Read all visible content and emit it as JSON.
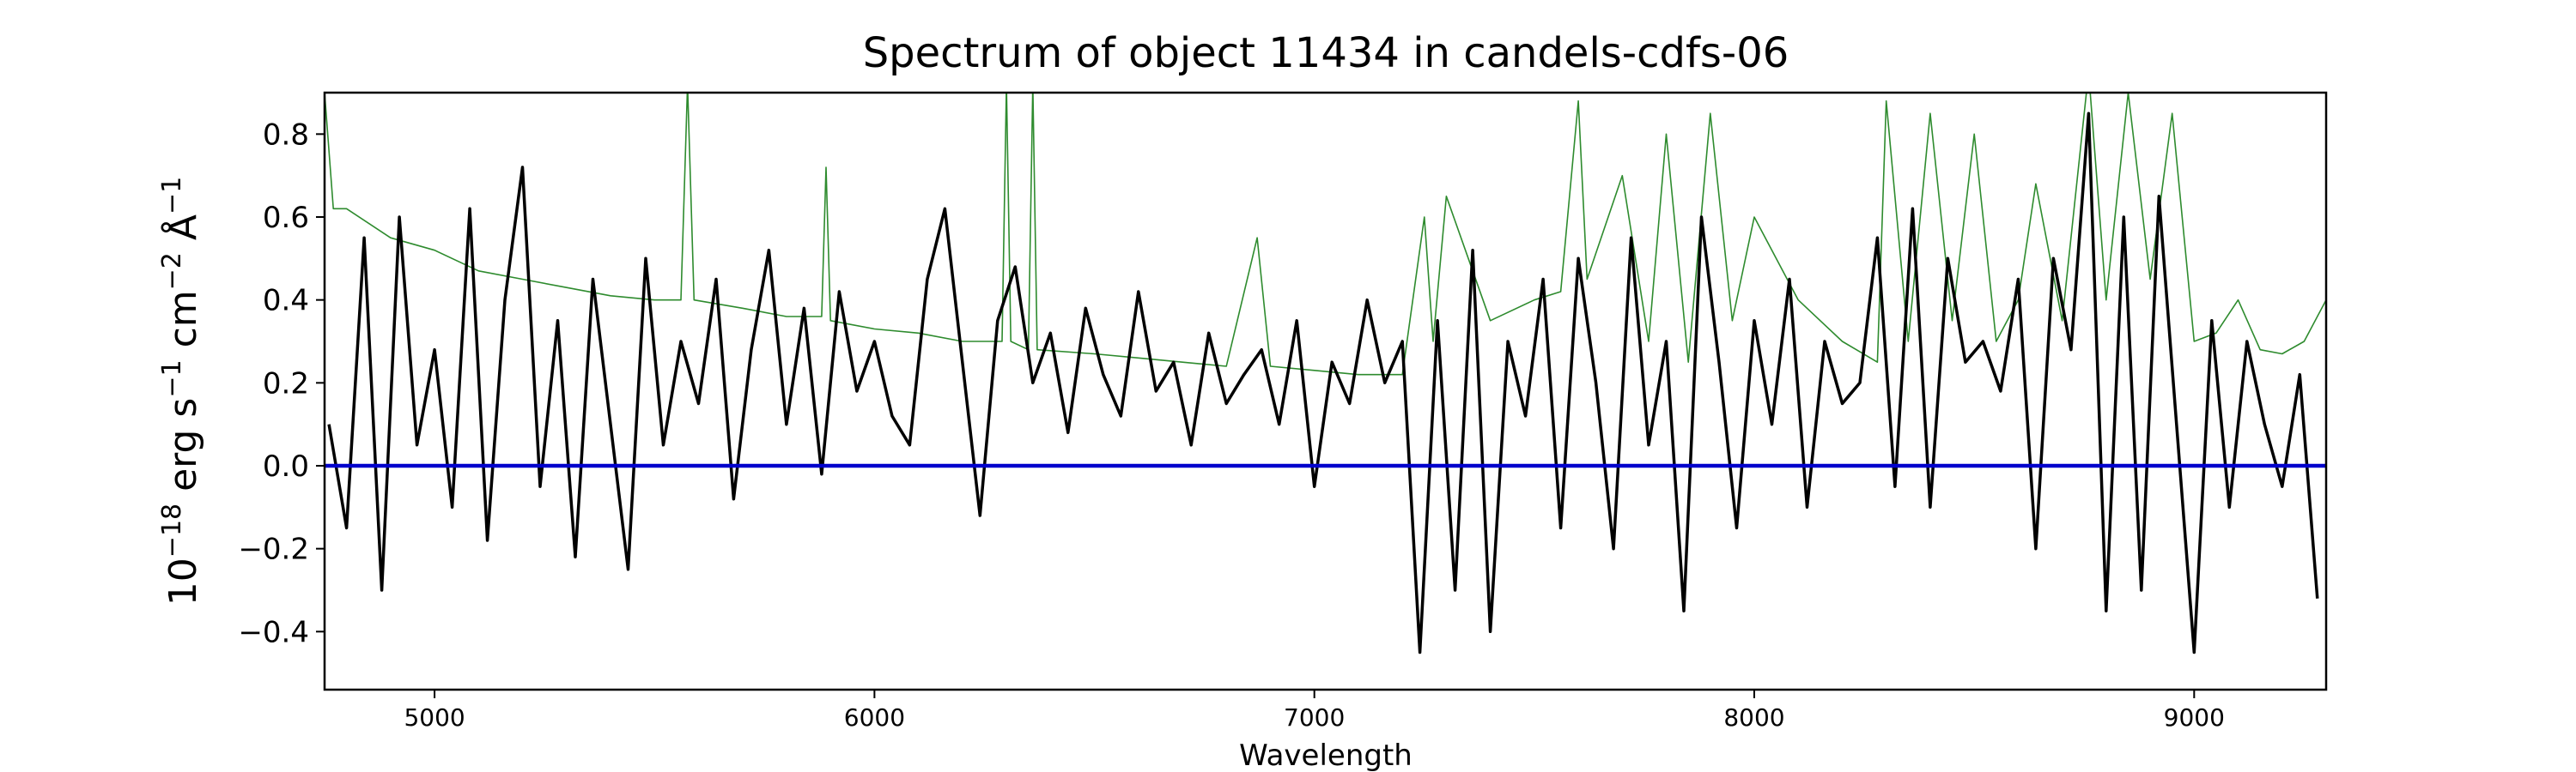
{
  "chart_data": {
    "type": "line",
    "title": "Spectrum of object 11434 in candels-cdfs-06",
    "xlabel": "Wavelength",
    "ylabel": "10^−18 erg s^−1 cm^−2 Å^−1",
    "ylabel_parts": {
      "base1": "10",
      "exp1": "−18",
      "unit1": " erg s",
      "exp2": "−1",
      "unit2": " cm",
      "exp3": "−2",
      "unit3": " Å",
      "exp4": "−1"
    },
    "xlim": [
      4750,
      9300
    ],
    "ylim": [
      -0.54,
      0.9
    ],
    "grid": false,
    "legend": "none",
    "x_ticks": [
      {
        "value": 5000,
        "label": "5000"
      },
      {
        "value": 6000,
        "label": "6000"
      },
      {
        "value": 7000,
        "label": "7000"
      },
      {
        "value": 8000,
        "label": "8000"
      },
      {
        "value": 9000,
        "label": "9000"
      }
    ],
    "y_ticks": [
      {
        "value": -0.4,
        "label": "−0.4"
      },
      {
        "value": -0.2,
        "label": "−0.2"
      },
      {
        "value": 0.0,
        "label": "0.0"
      },
      {
        "value": 0.2,
        "label": "0.2"
      },
      {
        "value": 0.4,
        "label": "0.4"
      },
      {
        "value": 0.6,
        "label": "0.6"
      },
      {
        "value": 0.8,
        "label": "0.8"
      }
    ],
    "series": [
      {
        "role": "flux",
        "color": "#000000",
        "x": [
          4760,
          4800,
          4840,
          4880,
          4920,
          4960,
          5000,
          5040,
          5080,
          5120,
          5160,
          5200,
          5240,
          5280,
          5320,
          5360,
          5400,
          5440,
          5480,
          5520,
          5560,
          5600,
          5640,
          5680,
          5720,
          5760,
          5800,
          5840,
          5880,
          5920,
          5960,
          6000,
          6040,
          6080,
          6120,
          6160,
          6200,
          6240,
          6280,
          6320,
          6360,
          6400,
          6440,
          6480,
          6520,
          6560,
          6600,
          6640,
          6680,
          6720,
          6760,
          6800,
          6840,
          6880,
          6920,
          6960,
          7000,
          7040,
          7080,
          7120,
          7160,
          7200,
          7240,
          7280,
          7320,
          7360,
          7400,
          7440,
          7480,
          7520,
          7560,
          7600,
          7640,
          7680,
          7720,
          7760,
          7800,
          7840,
          7880,
          7920,
          7960,
          8000,
          8040,
          8080,
          8120,
          8160,
          8200,
          8240,
          8280,
          8320,
          8360,
          8400,
          8440,
          8480,
          8520,
          8560,
          8600,
          8640,
          8680,
          8720,
          8760,
          8800,
          8840,
          8880,
          8920,
          8960,
          9000,
          9040,
          9080,
          9120,
          9160,
          9200,
          9240,
          9280
        ],
        "y": [
          0.1,
          -0.15,
          0.55,
          -0.3,
          0.6,
          0.05,
          0.28,
          -0.1,
          0.62,
          -0.18,
          0.4,
          0.72,
          -0.05,
          0.35,
          -0.22,
          0.45,
          0.1,
          -0.25,
          0.5,
          0.05,
          0.3,
          0.15,
          0.45,
          -0.08,
          0.28,
          0.52,
          0.1,
          0.38,
          -0.02,
          0.42,
          0.18,
          0.3,
          0.12,
          0.05,
          0.45,
          0.62,
          0.25,
          -0.12,
          0.35,
          0.48,
          0.2,
          0.32,
          0.08,
          0.38,
          0.22,
          0.12,
          0.42,
          0.18,
          0.25,
          0.05,
          0.32,
          0.15,
          0.22,
          0.28,
          0.1,
          0.35,
          -0.05,
          0.25,
          0.15,
          0.4,
          0.2,
          0.3,
          -0.45,
          0.35,
          -0.3,
          0.52,
          -0.4,
          0.3,
          0.12,
          0.45,
          -0.15,
          0.5,
          0.2,
          -0.2,
          0.55,
          0.05,
          0.3,
          -0.35,
          0.6,
          0.25,
          -0.15,
          0.35,
          0.1,
          0.45,
          -0.1,
          0.3,
          0.15,
          0.2,
          0.55,
          -0.05,
          0.62,
          -0.1,
          0.5,
          0.25,
          0.3,
          0.18,
          0.45,
          -0.2,
          0.5,
          0.28,
          0.85,
          -0.35,
          0.6,
          -0.3,
          0.65,
          0.1,
          -0.45,
          0.35,
          -0.1,
          0.3,
          0.1,
          -0.05,
          0.22,
          -0.32
        ]
      },
      {
        "role": "error",
        "color": "#2e8b2e",
        "x": [
          4750,
          4770,
          4800,
          4900,
          5000,
          5100,
          5200,
          5300,
          5400,
          5500,
          5560,
          5575,
          5590,
          5700,
          5800,
          5880,
          5890,
          5900,
          6000,
          6100,
          6200,
          6290,
          6300,
          6310,
          6350,
          6360,
          6370,
          6500,
          6600,
          6700,
          6800,
          6870,
          6900,
          7000,
          7100,
          7200,
          7250,
          7270,
          7300,
          7400,
          7500,
          7560,
          7600,
          7620,
          7700,
          7760,
          7800,
          7850,
          7900,
          7950,
          8000,
          8100,
          8200,
          8280,
          8300,
          8350,
          8400,
          8450,
          8500,
          8550,
          8600,
          8640,
          8700,
          8760,
          8800,
          8850,
          8900,
          8950,
          9000,
          9050,
          9100,
          9150,
          9200,
          9250,
          9300
        ],
        "y": [
          0.9,
          0.62,
          0.62,
          0.55,
          0.52,
          0.47,
          0.45,
          0.43,
          0.41,
          0.4,
          0.4,
          0.92,
          0.4,
          0.38,
          0.36,
          0.36,
          0.72,
          0.35,
          0.33,
          0.32,
          0.3,
          0.3,
          0.92,
          0.3,
          0.28,
          0.92,
          0.28,
          0.27,
          0.26,
          0.25,
          0.24,
          0.55,
          0.24,
          0.23,
          0.22,
          0.22,
          0.6,
          0.3,
          0.65,
          0.35,
          0.4,
          0.42,
          0.88,
          0.45,
          0.7,
          0.3,
          0.8,
          0.25,
          0.85,
          0.35,
          0.6,
          0.4,
          0.3,
          0.25,
          0.88,
          0.3,
          0.85,
          0.35,
          0.8,
          0.3,
          0.4,
          0.68,
          0.35,
          0.95,
          0.4,
          0.9,
          0.45,
          0.85,
          0.3,
          0.32,
          0.4,
          0.28,
          0.27,
          0.3,
          0.4
        ]
      },
      {
        "role": "zero",
        "color": "#0000cc",
        "x": [
          4750,
          9300
        ],
        "y": [
          0.0,
          0.0
        ]
      }
    ]
  }
}
